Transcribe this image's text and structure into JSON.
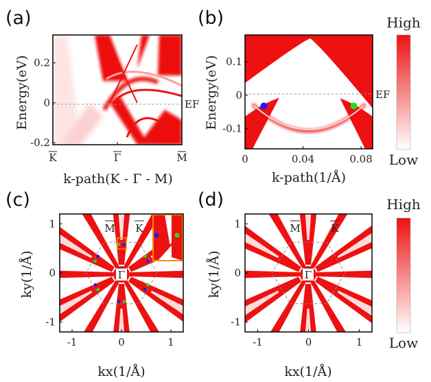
{
  "colors": {
    "band": "#ee1111",
    "weak": "#fbd0d0",
    "node_blue": "#1a1aff",
    "node_green": "#22dd22",
    "frame": "#000000",
    "inset_frame": "#ff8c00",
    "dashed": "#888888"
  },
  "colorbars": [
    {
      "high": "High",
      "low": "Low"
    },
    {
      "high": "High",
      "low": "Low"
    }
  ],
  "chart_data": [
    {
      "panel": "(a)",
      "type": "heatmap",
      "xlabel": "k-path(K - Γ - M)",
      "ylabel": "Energy(eV)",
      "xticks": [
        "K",
        "Γ",
        "M"
      ],
      "yticks": [
        0.2,
        0,
        -0.2
      ],
      "ylim": [
        -0.21,
        0.34
      ],
      "fermi_label": "EF",
      "fermi_level": 0
    },
    {
      "panel": "(b)",
      "type": "heatmap",
      "xlabel": "k-path(1/Å)",
      "ylabel": "Energy(eV)",
      "xticks": [
        0,
        0.04,
        0.08
      ],
      "xlim": [
        0,
        0.088
      ],
      "yticks": [
        0.1,
        0,
        -0.1
      ],
      "ylim": [
        -0.16,
        0.18
      ],
      "fermi_label": "EF",
      "fermi_level": 0,
      "nodes": [
        {
          "x": 0.013,
          "y": -0.032,
          "color": "blue"
        },
        {
          "x": 0.075,
          "y": -0.032,
          "color": "green"
        }
      ]
    },
    {
      "panel": "(c)",
      "type": "heatmap",
      "xlabel": "kx(1/Å)",
      "ylabel": "ky(1/Å)",
      "xticks": [
        -1,
        0,
        1
      ],
      "xlim": [
        -1.25,
        1.25
      ],
      "yticks": [
        1,
        0,
        -1
      ],
      "ylim": [
        -1.2,
        1.2
      ],
      "point_labels": [
        "M",
        "K",
        "Γ"
      ]
    },
    {
      "panel": "(d)",
      "type": "heatmap",
      "xlabel": "kx(1/Å)",
      "ylabel": "ky(1/Å)",
      "xticks": [
        -1,
        0,
        1
      ],
      "xlim": [
        -1.25,
        1.25
      ],
      "yticks": [
        1,
        0,
        -1
      ],
      "ylim": [
        -1.2,
        1.2
      ],
      "point_labels": [
        "M",
        "K",
        "Γ"
      ]
    }
  ]
}
